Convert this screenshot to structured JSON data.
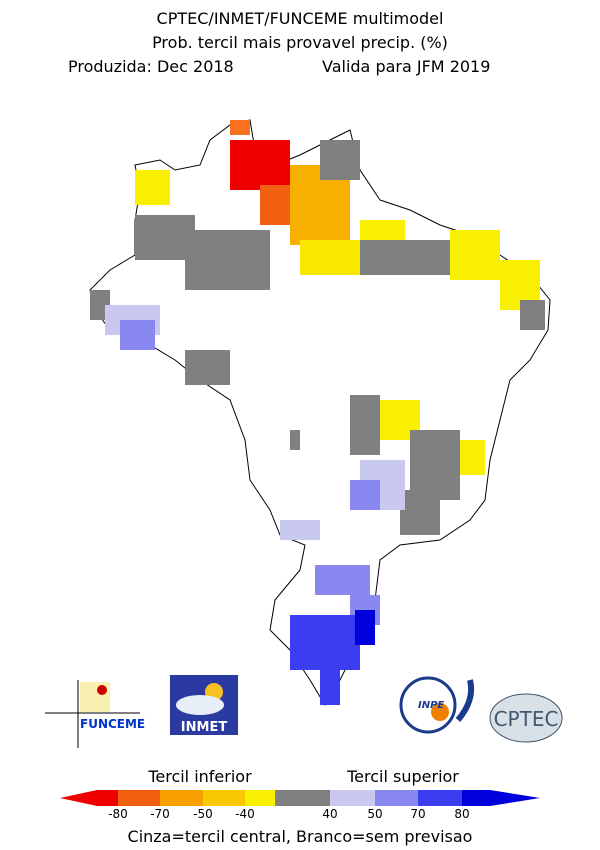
{
  "header": {
    "lines": [
      "CPTEC/INMET/FUNCEME multimodel",
      "Prob. tercil mais provavel precip. (%)",
      "Produzida: Dec 2018",
      "Valida para JFM 2019"
    ]
  },
  "logos": {
    "funceme": "FUNCEME",
    "inmet": "INMET",
    "inpe": "INPE",
    "cptec": "CPTEC"
  },
  "legend": {
    "lower_label": "Tercil inferior",
    "upper_label": "Tercil superior",
    "ticks": [
      -80,
      -70,
      -50,
      -40,
      40,
      50,
      70,
      80
    ],
    "note": "Cinza=tercil central, Branco=sem previsao"
  }
}
